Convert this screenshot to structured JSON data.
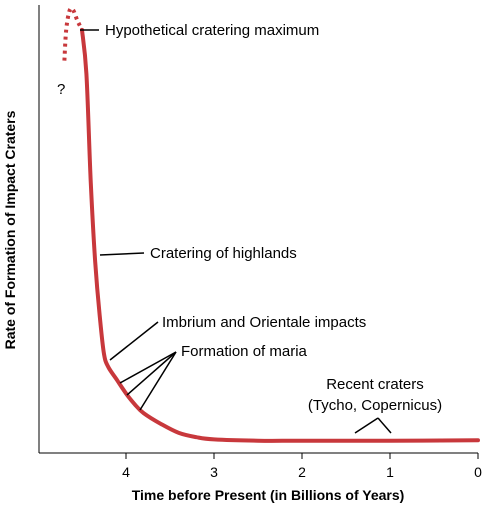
{
  "chart_data": {
    "type": "line",
    "title": "",
    "xlabel": "Time before Present (in Billions of Years)",
    "ylabel": "Rate of Formation of Impact Craters",
    "x_reversed": true,
    "xlim": [
      4.9,
      0
    ],
    "ylim": [
      0,
      1
    ],
    "x_ticks": [
      "4",
      "3",
      "2",
      "1",
      "0"
    ],
    "grid": false,
    "colors": {
      "curve": "#c8383c",
      "axis": "#000000"
    },
    "series": [
      {
        "style": "solid",
        "points": [
          [
            4.5,
            0.95
          ],
          [
            4.45,
            0.85
          ],
          [
            4.4,
            0.6
          ],
          [
            4.35,
            0.42
          ],
          [
            4.3,
            0.3
          ],
          [
            4.25,
            0.21
          ],
          [
            4.2,
            0.18
          ],
          [
            4.1,
            0.15
          ],
          [
            4.0,
            0.12
          ],
          [
            3.9,
            0.095
          ],
          [
            3.8,
            0.075
          ],
          [
            3.6,
            0.05
          ],
          [
            3.4,
            0.03
          ],
          [
            3.2,
            0.02
          ],
          [
            3.0,
            0.015
          ],
          [
            2.5,
            0.012
          ],
          [
            2.0,
            0.012
          ],
          [
            1.0,
            0.012
          ],
          [
            0.0,
            0.013
          ]
        ]
      },
      {
        "style": "dotted",
        "points": [
          [
            4.7,
            0.88
          ],
          [
            4.68,
            0.95
          ],
          [
            4.64,
            0.995
          ],
          [
            4.6,
            0.995
          ],
          [
            4.55,
            0.97
          ],
          [
            4.5,
            0.95
          ]
        ]
      }
    ],
    "annotations": [
      {
        "text": "Hypothetical cratering maximum"
      },
      {
        "text": "?"
      },
      {
        "text": "Cratering of highlands"
      },
      {
        "text": "Imbrium and Orientale impacts"
      },
      {
        "text": "Formation of maria"
      },
      {
        "text": "Recent craters"
      },
      {
        "text": "(Tycho, Copernicus)"
      }
    ]
  }
}
